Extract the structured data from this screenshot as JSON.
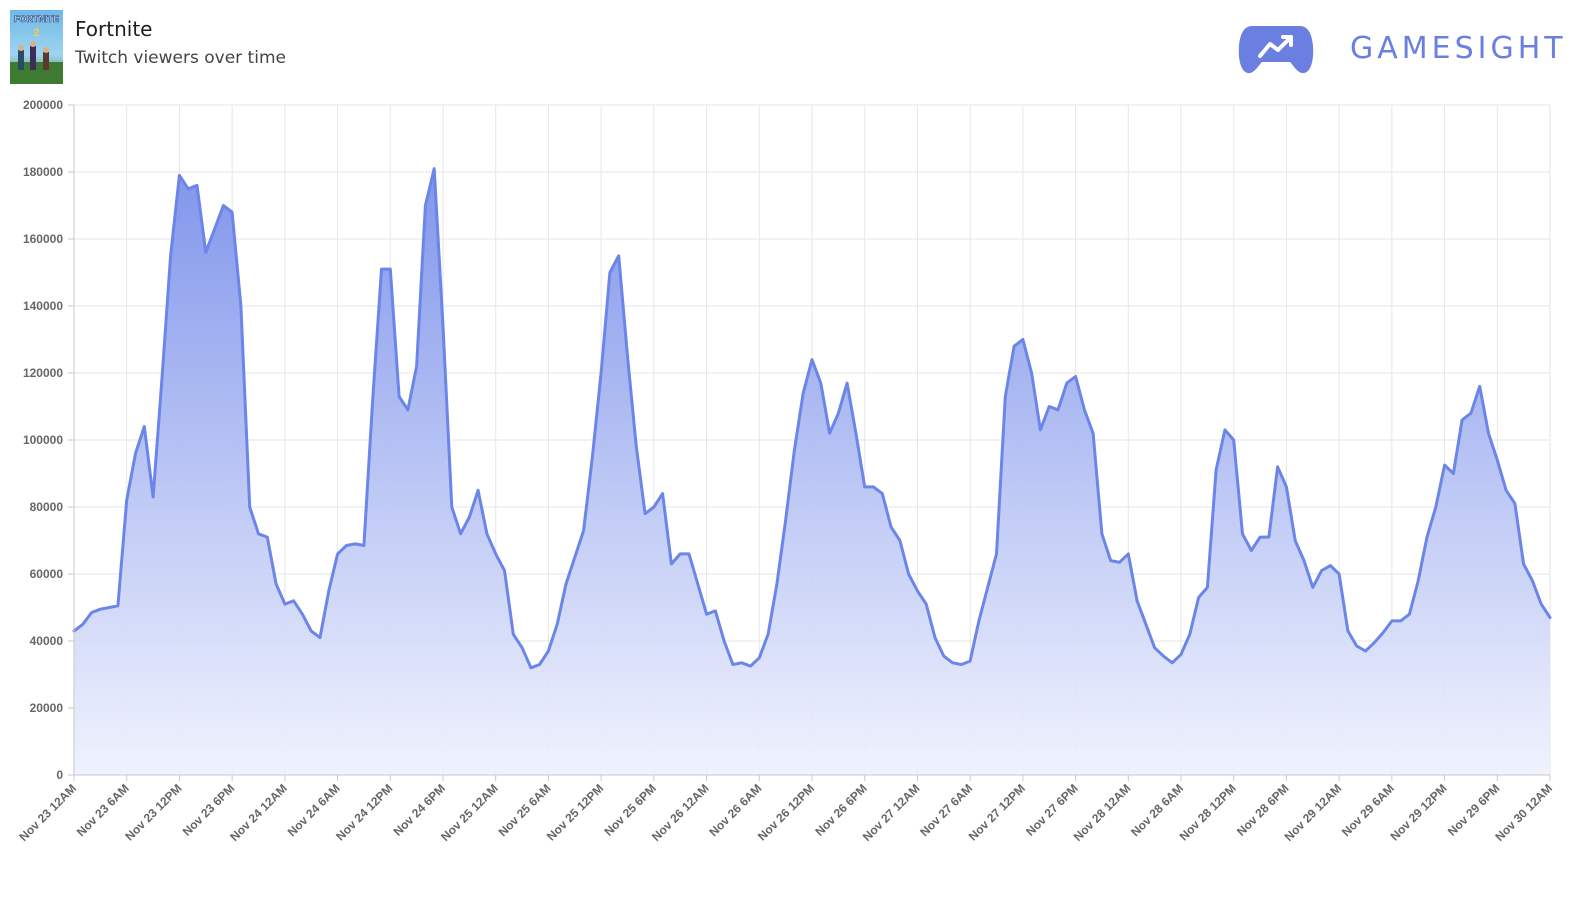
{
  "header": {
    "game_title": "Fortnite",
    "subtitle": "Twitch viewers over time",
    "brand": "GAMESIGHT",
    "cover_label": "FORTNITE",
    "cover_badge": "2"
  },
  "colors": {
    "line": "#6b85e8",
    "fill_top": "#7a90ea",
    "fill_bottom": "#eef1fd",
    "brand": "#6b7fe0",
    "grid": "#e6e6e6"
  },
  "chart_data": {
    "type": "area",
    "title": "",
    "xlabel": "",
    "ylabel": "",
    "ylim": [
      0,
      200000
    ],
    "yticks": [
      0,
      20000,
      40000,
      60000,
      80000,
      100000,
      120000,
      140000,
      160000,
      180000,
      200000
    ],
    "xticks": [
      "Nov 23 12AM",
      "Nov 23 6AM",
      "Nov 23 12PM",
      "Nov 23 6PM",
      "Nov 24 12AM",
      "Nov 24 6AM",
      "Nov 24 12PM",
      "Nov 24 6PM",
      "Nov 25 12AM",
      "Nov 25 6AM",
      "Nov 25 12PM",
      "Nov 25 6PM",
      "Nov 26 12AM",
      "Nov 26 6AM",
      "Nov 26 12PM",
      "Nov 26 6PM",
      "Nov 27 12AM",
      "Nov 27 6AM",
      "Nov 27 12PM",
      "Nov 27 6PM",
      "Nov 28 12AM",
      "Nov 28 6AM",
      "Nov 28 12PM",
      "Nov 28 6PM",
      "Nov 29 12AM",
      "Nov 29 6AM",
      "Nov 29 12PM",
      "Nov 29 6PM",
      "Nov 30 12AM"
    ],
    "grid": true,
    "legend": "none",
    "x_hours": [
      0,
      1,
      2,
      3,
      4,
      5,
      6,
      7,
      8,
      9,
      10,
      11,
      12,
      13,
      14,
      15,
      16,
      17,
      18,
      19,
      20,
      21,
      22,
      23,
      24,
      25,
      26,
      27,
      28,
      29,
      30,
      31,
      32,
      33,
      34,
      35,
      36,
      37,
      38,
      39,
      40,
      41,
      42,
      43,
      44,
      45,
      46,
      47,
      48,
      49,
      50,
      51,
      52,
      53,
      54,
      55,
      56,
      57,
      58,
      59,
      60,
      61,
      62,
      63,
      64,
      65,
      66,
      67,
      68,
      69,
      70,
      71,
      72,
      73,
      74,
      75,
      76,
      77,
      78,
      79,
      80,
      81,
      82,
      83,
      84,
      85,
      86,
      87,
      88,
      89,
      90,
      91,
      92,
      93,
      94,
      95,
      96,
      97,
      98,
      99,
      100,
      101,
      102,
      103,
      104,
      105,
      106,
      107,
      108,
      109,
      110,
      111,
      112,
      113,
      114,
      115,
      116,
      117,
      118,
      119,
      120,
      121,
      122,
      123,
      124,
      125,
      126,
      127,
      128,
      129,
      130,
      131,
      132,
      133,
      134,
      135,
      136,
      137,
      138,
      139,
      140,
      141,
      142,
      143,
      144,
      145,
      146,
      147,
      148,
      149,
      150,
      151,
      152,
      153,
      154,
      155,
      156,
      157,
      158,
      159,
      160,
      161,
      162,
      163,
      164,
      165,
      166,
      167,
      168
    ],
    "series": [
      {
        "values": [
          43000,
          45000,
          48500,
          49500,
          50000,
          50500,
          82000,
          96000,
          104000,
          83000,
          118000,
          155000,
          179000,
          175000,
          176000,
          156000,
          163000,
          170000,
          168000,
          140000,
          80000,
          72000,
          71000,
          57000,
          51000,
          52000,
          48000,
          43000,
          41000,
          55000,
          66000,
          68500,
          69000,
          68500,
          112000,
          151000,
          151000,
          113000,
          109000,
          122000,
          170000,
          181000,
          134000,
          80000,
          72000,
          77000,
          85000,
          72000,
          66000,
          61000,
          42000,
          38000,
          32000,
          33000,
          37000,
          45000,
          57000,
          65000,
          73000,
          95000,
          120000,
          150000,
          155000,
          125000,
          98000,
          78000,
          80000,
          84000,
          63000,
          66000,
          66000,
          57000,
          48000,
          49000,
          40000,
          33000,
          33500,
          32500,
          35000,
          42000,
          57000,
          76000,
          97000,
          114000,
          124000,
          117000,
          102000,
          108000,
          117000,
          102000,
          86000,
          86000,
          84000,
          74000,
          70000,
          60000,
          55000,
          51000,
          41000,
          35500,
          33500,
          33000,
          34000,
          46000,
          56000,
          66000,
          113000,
          128000,
          130000,
          120000,
          103000,
          110000,
          109000,
          117000,
          119000,
          109000,
          102000,
          72000,
          64000,
          63500,
          66000,
          52000,
          45000,
          38000,
          35500,
          33500,
          36000,
          42000,
          53000,
          56000,
          91000,
          103000,
          100000,
          72000,
          67000,
          71000,
          71000,
          92000,
          86000,
          70000,
          64000,
          56000,
          61000,
          62500,
          60000,
          43000,
          38500,
          37000,
          39500,
          42500,
          46000,
          46000,
          48000,
          58000,
          71000,
          80000,
          92500,
          90000,
          106000,
          108000,
          116000,
          102000,
          94000,
          85000,
          81000,
          63000,
          58000,
          51000,
          47000
        ]
      }
    ]
  }
}
